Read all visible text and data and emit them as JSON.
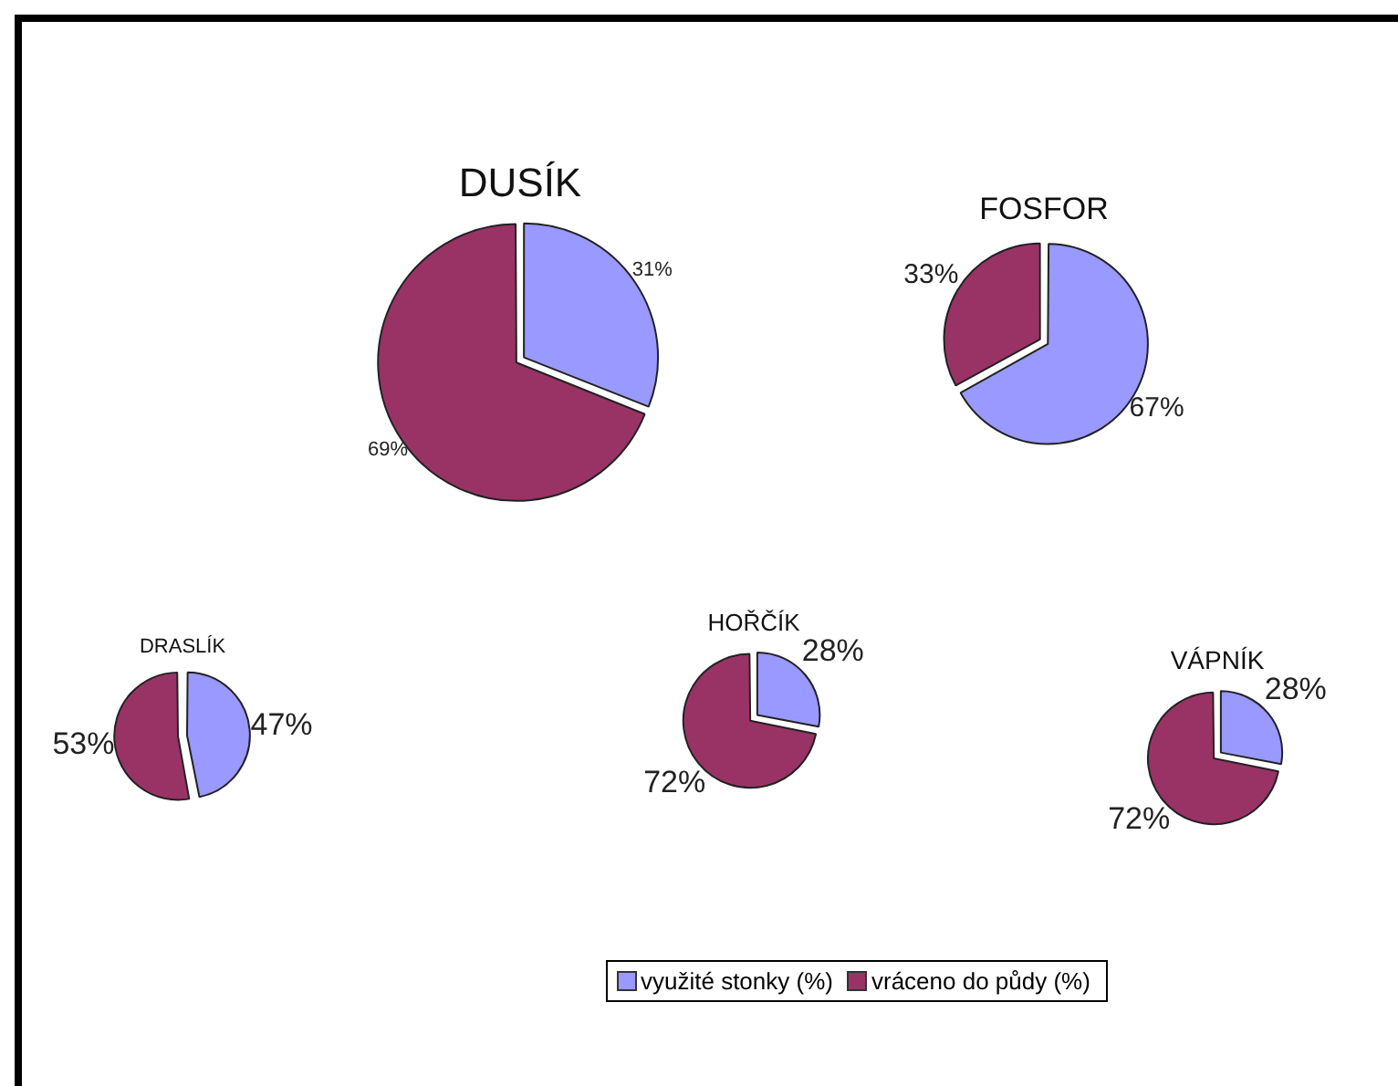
{
  "chart_data": [
    {
      "type": "pie",
      "title": "DUSÍK",
      "categories": [
        "využité stonky (%)",
        "vráceno do půdy (%)"
      ],
      "values": [
        31,
        69
      ],
      "colors": [
        "#9999ff",
        "#993366"
      ],
      "value_labels": [
        "31%",
        "69%"
      ],
      "legend": "bottom"
    },
    {
      "type": "pie",
      "title": "FOSFOR",
      "categories": [
        null,
        null
      ],
      "values": [
        67,
        33
      ],
      "colors": [
        "#9999ff",
        "#993366"
      ],
      "value_labels": [
        "67%",
        "33%"
      ]
    },
    {
      "type": "pie",
      "title": "DRASLÍK",
      "categories": [
        null,
        null
      ],
      "values": [
        47,
        53
      ],
      "colors": [
        "#9999ff",
        "#993366"
      ],
      "value_labels": [
        "47%",
        "53%"
      ]
    },
    {
      "type": "pie",
      "title": "HOŘČÍK",
      "categories": [
        null,
        null
      ],
      "values": [
        28,
        72
      ],
      "colors": [
        "#9999ff",
        "#993366"
      ],
      "value_labels": [
        "28%",
        "72%"
      ]
    },
    {
      "type": "pie",
      "title": "VÁPNÍK",
      "categories": [
        null,
        null
      ],
      "values": [
        28,
        72
      ],
      "colors": [
        "#9999ff",
        "#993366"
      ],
      "value_labels": [
        "28%",
        "72%"
      ]
    }
  ]
}
